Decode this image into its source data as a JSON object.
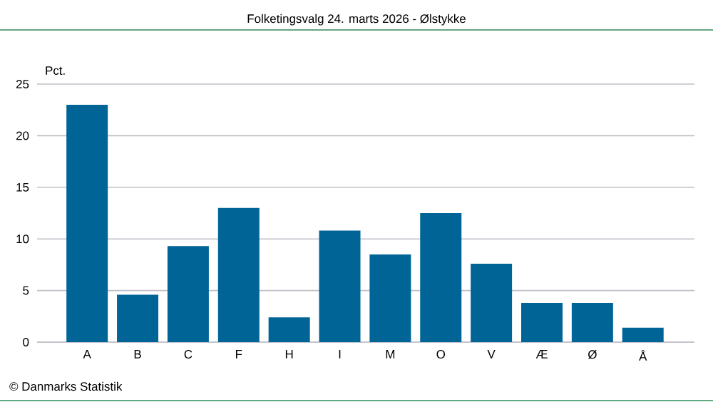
{
  "chart_data": {
    "type": "bar",
    "title": "Folketingsvalg 24. marts 2026 - Ølstykke",
    "ylabel": "Pct.",
    "categories": [
      "A",
      "B",
      "C",
      "F",
      "H",
      "I",
      "M",
      "O",
      "V",
      "Æ",
      "Ø",
      "Å"
    ],
    "values": [
      23.0,
      4.6,
      9.3,
      13.0,
      2.4,
      10.8,
      8.5,
      12.5,
      7.6,
      3.8,
      3.8,
      1.4
    ],
    "color": "#006496",
    "ylim": [
      0,
      25
    ],
    "yticks": [
      0,
      5,
      10,
      15,
      20,
      25
    ],
    "grid": "y",
    "annotations": [
      "© Danmarks Statistik"
    ]
  }
}
